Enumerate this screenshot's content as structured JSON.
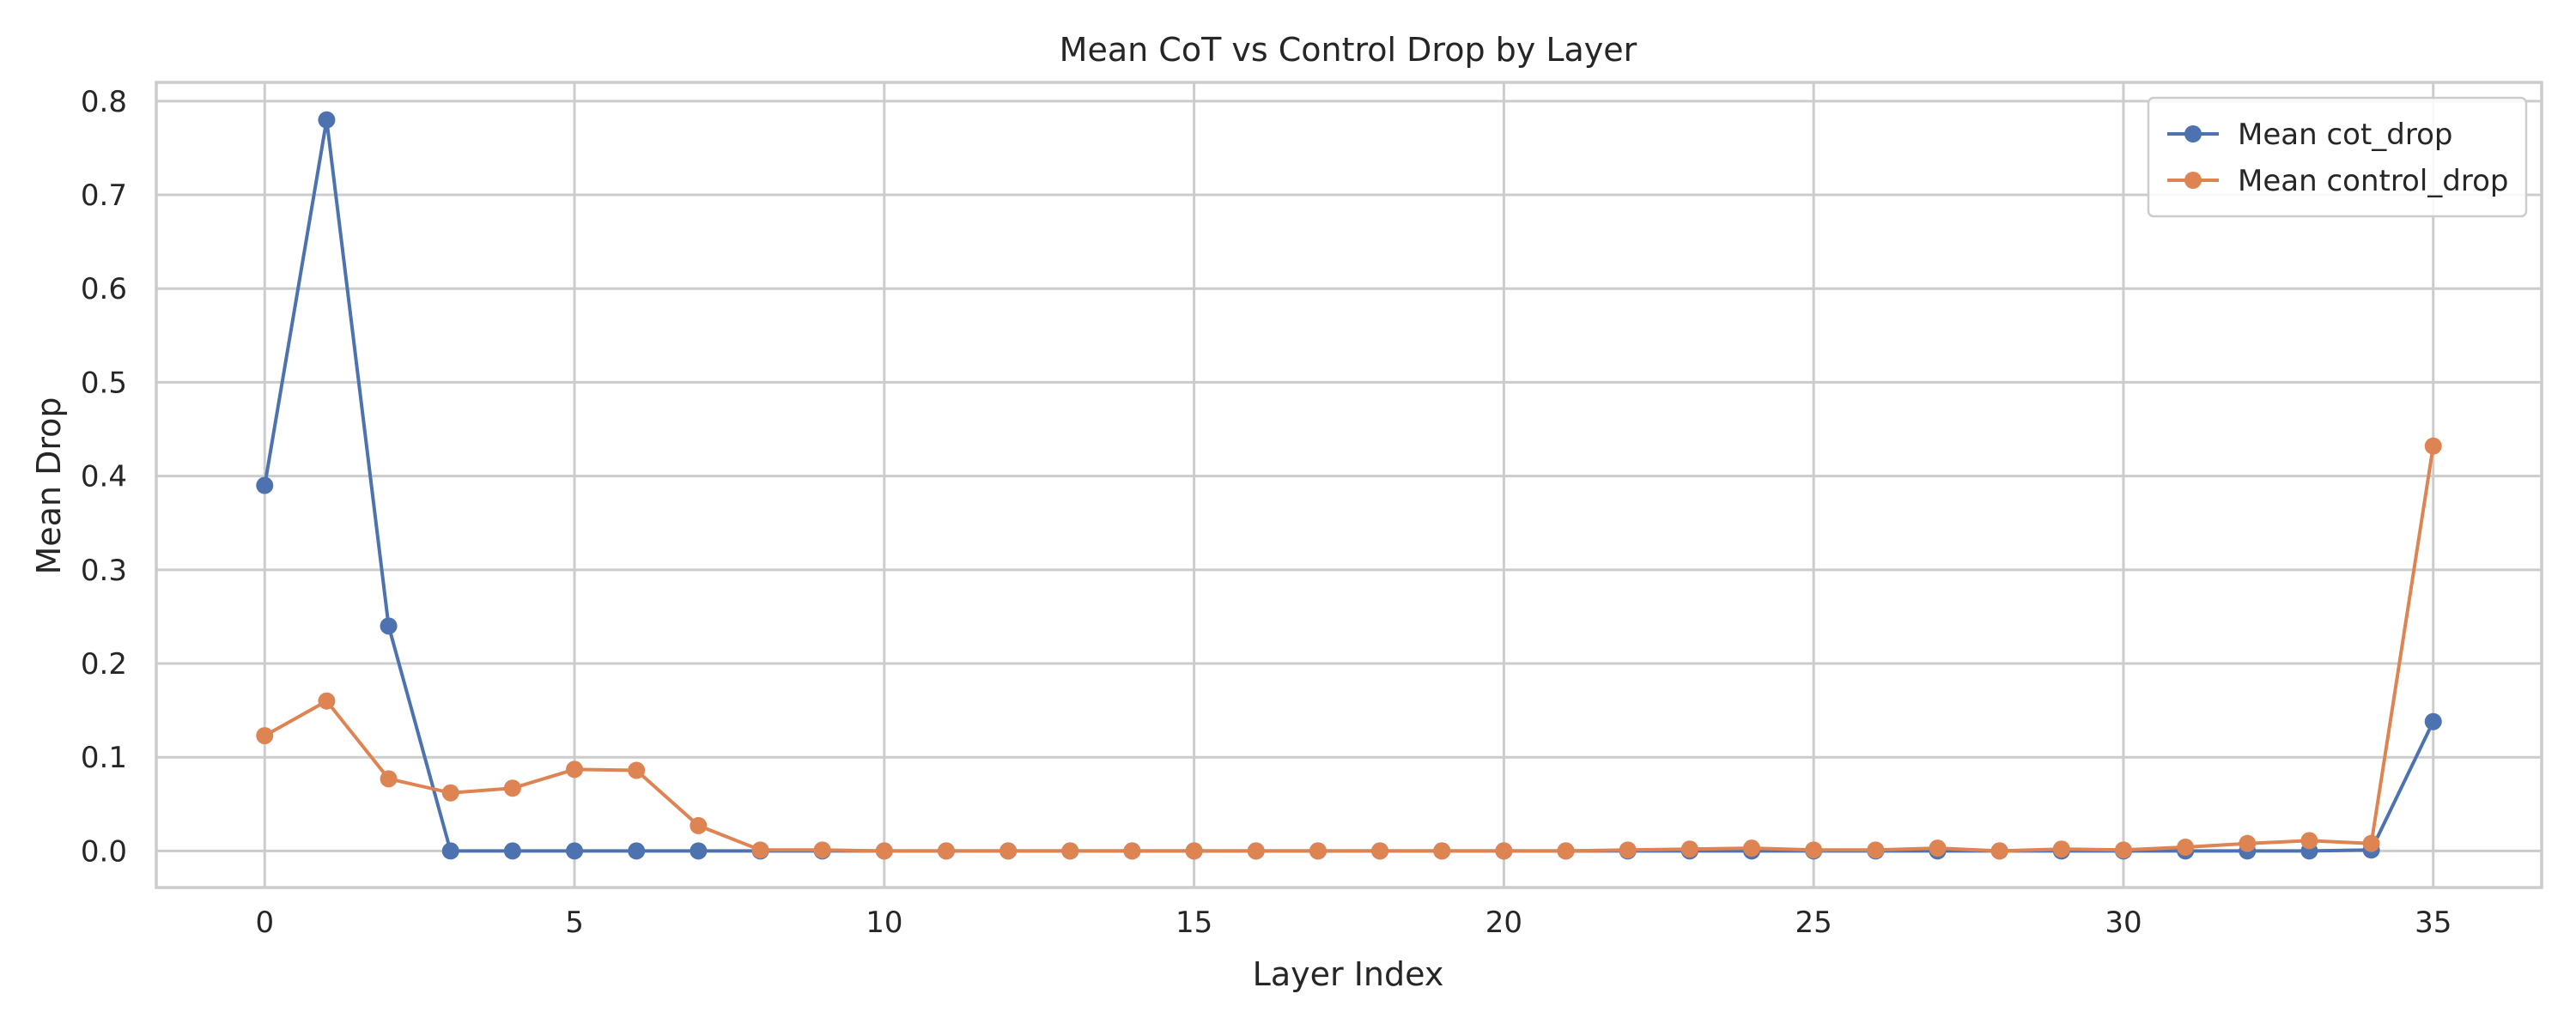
{
  "chart_data": {
    "type": "line",
    "title": "Mean CoT vs Control Drop by Layer",
    "xlabel": "Layer Index",
    "ylabel": "Mean Drop",
    "xlim": [
      -1.75,
      36.75
    ],
    "ylim": [
      -0.039,
      0.82
    ],
    "xticks": [
      0,
      5,
      10,
      15,
      20,
      25,
      30,
      35
    ],
    "yticks": [
      0.0,
      0.1,
      0.2,
      0.3,
      0.4,
      0.5,
      0.6,
      0.7,
      0.8
    ],
    "ytick_labels": [
      "0.0",
      "0.1",
      "0.2",
      "0.3",
      "0.4",
      "0.5",
      "0.6",
      "0.7",
      "0.8"
    ],
    "grid": true,
    "legend_position": "top-right",
    "x": [
      0,
      1,
      2,
      3,
      4,
      5,
      6,
      7,
      8,
      9,
      10,
      11,
      12,
      13,
      14,
      15,
      16,
      17,
      18,
      19,
      20,
      21,
      22,
      23,
      24,
      25,
      26,
      27,
      28,
      29,
      30,
      31,
      32,
      33,
      34,
      35
    ],
    "series": [
      {
        "name": "Mean cot_drop",
        "color": "#4c72b0",
        "values": [
          0.39,
          0.78,
          0.24,
          0.0,
          0.0,
          0.0,
          0.0,
          0.0,
          0.0,
          0.0,
          0.0,
          0.0,
          0.0,
          0.0,
          0.0,
          0.0,
          0.0,
          0.0,
          0.0,
          0.0,
          0.0,
          0.0,
          0.0,
          0.0,
          0.0,
          0.0,
          0.0,
          0.0,
          0.0,
          0.0,
          0.0,
          0.0,
          0.0,
          0.0,
          0.001,
          0.138
        ]
      },
      {
        "name": "Mean control_drop",
        "color": "#dd8452",
        "values": [
          0.123,
          0.16,
          0.077,
          0.062,
          0.067,
          0.087,
          0.086,
          0.027,
          0.001,
          0.001,
          0.0,
          0.0,
          0.0,
          0.0,
          0.0,
          0.0,
          0.0,
          0.0,
          0.0,
          0.0,
          0.0,
          0.0,
          0.001,
          0.002,
          0.003,
          0.001,
          0.001,
          0.003,
          0.0,
          0.002,
          0.001,
          0.004,
          0.008,
          0.011,
          0.008,
          0.432
        ]
      }
    ]
  }
}
